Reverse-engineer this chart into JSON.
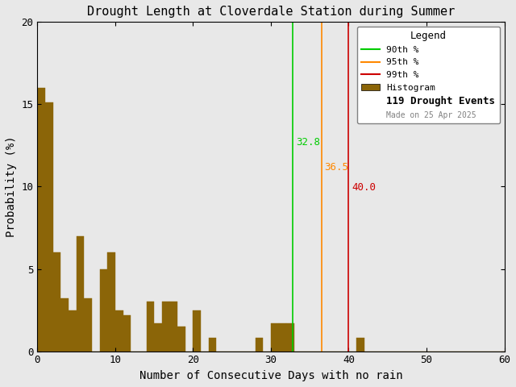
{
  "title": "Drought Length at Cloverdale Station during Summer",
  "xlabel": "Number of Consecutive Days with no rain",
  "ylabel": "Probability (%)",
  "xlim": [
    0,
    60
  ],
  "ylim": [
    0,
    20
  ],
  "bar_color": "#8B6508",
  "bar_edgecolor": "#8B6508",
  "background_color": "#e8e8e8",
  "percentile_90": 32.8,
  "percentile_95": 36.5,
  "percentile_99": 40.0,
  "p90_color": "#00cc00",
  "p95_color": "#ff8800",
  "p99_color": "#cc0000",
  "n_events": 119,
  "made_on": "Made on 25 Apr 2025",
  "bar_heights": [
    16.0,
    15.1,
    6.0,
    3.2,
    2.5,
    7.0,
    3.2,
    0.0,
    5.0,
    6.0,
    2.5,
    2.2,
    0.0,
    0.0,
    3.0,
    1.7,
    3.0,
    3.0,
    1.5,
    0.0,
    2.5,
    0.0,
    0.8,
    0.0,
    0.0,
    0.0,
    0.0,
    0.0,
    0.8,
    0.0,
    1.7,
    1.7,
    1.7,
    0.0,
    0.0,
    0.0,
    0.0,
    0.0,
    0.0,
    0.0,
    0.0,
    0.8,
    0.0,
    0.0,
    0.0,
    0.0,
    0.0,
    0.0,
    0.0,
    0.0,
    0.0,
    0.0,
    0.0,
    0.0,
    0.0,
    0.0,
    0.0,
    0.0,
    0.0,
    0.0
  ]
}
